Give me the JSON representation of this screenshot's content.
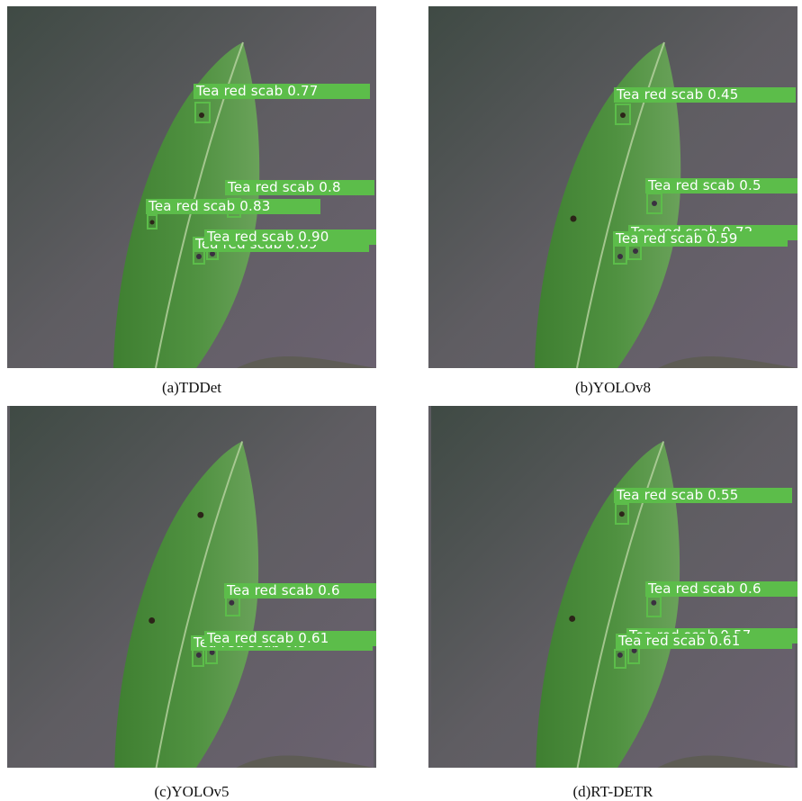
{
  "panels": [
    {
      "id": "a",
      "caption": "(a)TDDet",
      "detections": [
        {
          "label": "Tea red scab 0.77"
        },
        {
          "label": "Tea red scab 0.8"
        },
        {
          "label": "Tea red scab 0.83"
        },
        {
          "label": "Tea red scab 0.90"
        },
        {
          "label": "Tea red scab 0.89"
        }
      ]
    },
    {
      "id": "b",
      "caption": "(b)YOLOv8",
      "detections": [
        {
          "label": "Tea red scab 0.45"
        },
        {
          "label": "Tea red scab 0.5"
        },
        {
          "label": "Tea red scab 0.59"
        },
        {
          "label": "Tea red scab 0.72"
        }
      ]
    },
    {
      "id": "c",
      "caption": "(c)YOLOv5",
      "detections": [
        {
          "label": "Tea red scab 0.6"
        },
        {
          "label": "Tea red scab 0.61"
        },
        {
          "label": "Tea red scab 0.5"
        }
      ]
    },
    {
      "id": "d",
      "caption": "(d)RT-DETR",
      "detections": [
        {
          "label": "Tea red scab 0.55"
        },
        {
          "label": "Tea red scab 0.6"
        },
        {
          "label": "Tea red scab 0.61"
        },
        {
          "label": "Tea red scab 0.57"
        }
      ]
    }
  ],
  "colors": {
    "detection": "#5cbd4a",
    "leaf": "#4a8a3a",
    "background": "#5e5c62"
  }
}
